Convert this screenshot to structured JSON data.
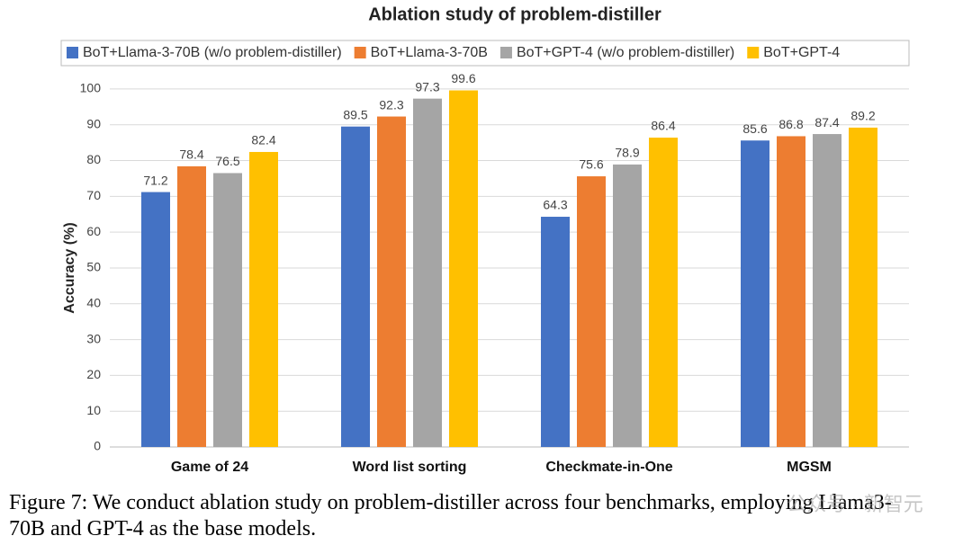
{
  "chart_data": {
    "type": "bar",
    "title": "Ablation study of problem-distiller",
    "y_label": "Accuracy (%)",
    "categories": [
      "Game of 24",
      "Word list sorting",
      "Checkmate-in-One",
      "MGSM"
    ],
    "series": [
      {
        "name": "BoT+Llama-3-70B (w/o problem-distiller)",
        "color": "#4472c4",
        "values": [
          71.2,
          89.5,
          64.3,
          85.6
        ]
      },
      {
        "name": "BoT+Llama-3-70B",
        "color": "#ed7d31",
        "values": [
          78.4,
          92.3,
          75.6,
          86.8
        ]
      },
      {
        "name": "BoT+GPT-4 (w/o problem-distiller)",
        "color": "#a5a5a5",
        "values": [
          76.5,
          97.3,
          78.9,
          87.4
        ]
      },
      {
        "name": "BoT+GPT-4",
        "color": "#ffc000",
        "values": [
          82.4,
          99.6,
          86.4,
          89.2
        ]
      }
    ],
    "ylim": [
      0,
      105
    ],
    "yticks": [
      0,
      10,
      20,
      30,
      40,
      50,
      60,
      70,
      80,
      90,
      100
    ],
    "grid": true,
    "legend": "top",
    "caption": [
      "Figure 7: We conduct ablation study on problem-distiller across four benchmarks, employing Llama3-",
      "70B and GPT-4 as the base models."
    ],
    "watermark": "公众号 · 新智元"
  }
}
